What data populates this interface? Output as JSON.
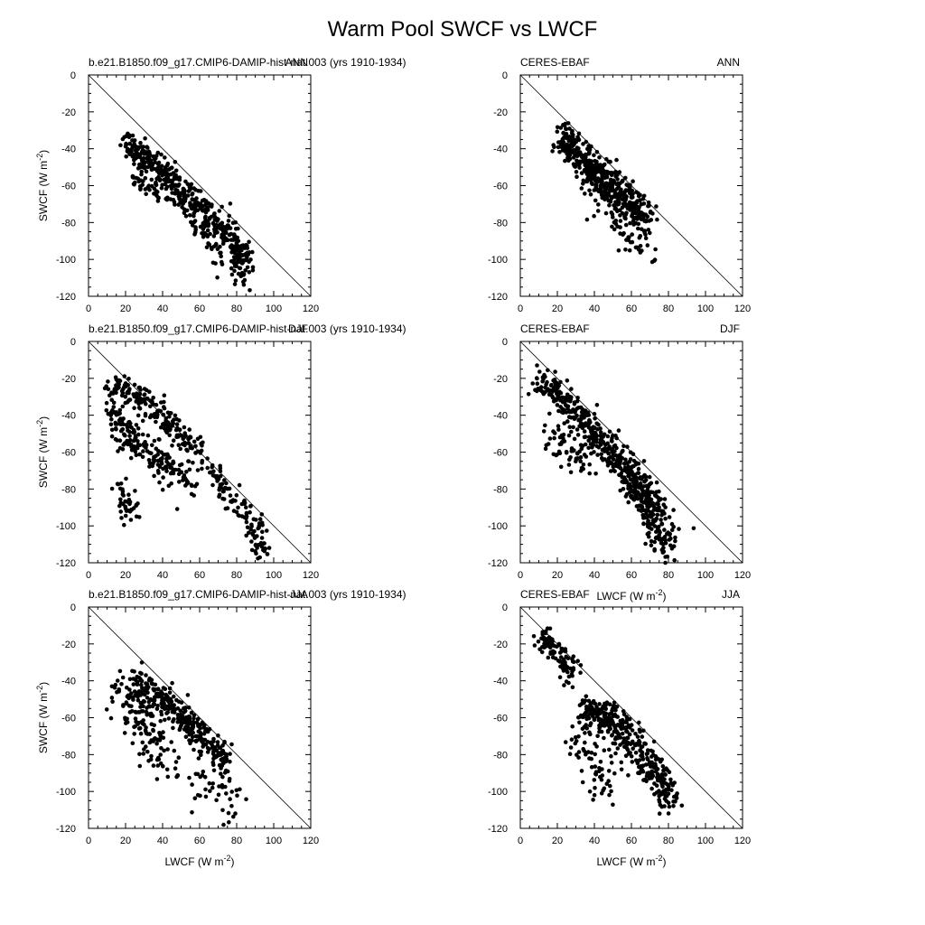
{
  "figure": {
    "title": "Warm Pool SWCF vs LWCF"
  },
  "chart_data": [
    {
      "type": "scatter",
      "left_label": "b.e21.B1850.f09_g17.CMIP6-DAMIP-hist-nat.003 (yrs 1910-1934)",
      "right_label": "ANN",
      "xlabel": "",
      "ylabel": "SWCF (W m-2)",
      "xlim": [
        0,
        120
      ],
      "ylim": [
        -120,
        0
      ],
      "xticks": [
        0,
        20,
        40,
        60,
        80,
        100,
        120
      ],
      "yticks": [
        0,
        -20,
        -40,
        -60,
        -80,
        -100,
        -120
      ],
      "reference_line": [
        [
          0,
          0
        ],
        [
          120,
          -120
        ]
      ],
      "clusters": [
        {
          "x": [
            20,
            30,
            40,
            50,
            60,
            70,
            80,
            85
          ],
          "y": [
            -37,
            -45,
            -52,
            -62,
            -72,
            -82,
            -92,
            -100
          ],
          "spread": 4,
          "count": 420,
          "seed": 11
        },
        {
          "x": [
            25,
            35,
            45,
            55,
            65
          ],
          "y": [
            -55,
            -62,
            -68,
            -76,
            -84
          ],
          "spread": 3,
          "count": 60,
          "seed": 12
        },
        {
          "x": [
            60,
            70,
            80,
            85
          ],
          "y": [
            -85,
            -95,
            -105,
            -112
          ],
          "spread": 5,
          "count": 60,
          "seed": 13
        }
      ]
    },
    {
      "type": "scatter",
      "left_label": "CERES-EBAF",
      "right_label": "ANN",
      "xlabel": "",
      "ylabel": "",
      "xlim": [
        0,
        120
      ],
      "ylim": [
        -120,
        0
      ],
      "xticks": [
        0,
        20,
        40,
        60,
        80,
        100,
        120
      ],
      "yticks": [
        0,
        -20,
        -40,
        -60,
        -80,
        -100,
        -120
      ],
      "reference_line": [
        [
          0,
          0
        ],
        [
          120,
          -120
        ]
      ],
      "clusters": [
        {
          "x": [
            22,
            30,
            40,
            50,
            60,
            68
          ],
          "y": [
            -35,
            -42,
            -52,
            -60,
            -70,
            -78
          ],
          "spread": 5,
          "count": 480,
          "seed": 21
        },
        {
          "x": [
            40,
            50,
            60,
            70
          ],
          "y": [
            -62,
            -75,
            -85,
            -95
          ],
          "spread": 6,
          "count": 80,
          "seed": 22
        }
      ]
    },
    {
      "type": "scatter",
      "left_label": "b.e21.B1850.f09_g17.CMIP6-DAMIP-hist-nat.003 (yrs 1910-1934)",
      "right_label": "DJF",
      "xlabel": "",
      "ylabel": "SWCF (W m-2)",
      "xlim": [
        0,
        120
      ],
      "ylim": [
        -120,
        0
      ],
      "xticks": [
        0,
        20,
        40,
        60,
        80,
        100,
        120
      ],
      "yticks": [
        0,
        -20,
        -40,
        -60,
        -80,
        -100,
        -120
      ],
      "reference_line": [
        [
          0,
          0
        ],
        [
          120,
          -120
        ]
      ],
      "clusters": [
        {
          "x": [
            12,
            20,
            30,
            40,
            50,
            60,
            70,
            80,
            90,
            95
          ],
          "y": [
            -25,
            -25,
            -32,
            -40,
            -50,
            -62,
            -75,
            -88,
            -100,
            -115
          ],
          "spread": 4,
          "count": 300,
          "seed": 31
        },
        {
          "x": [
            12,
            18,
            25,
            35,
            45,
            55
          ],
          "y": [
            -35,
            -45,
            -55,
            -63,
            -70,
            -78
          ],
          "spread": 5,
          "count": 200,
          "seed": 32
        },
        {
          "x": [
            15,
            20,
            25
          ],
          "y": [
            -78,
            -88,
            -95
          ],
          "spread": 4,
          "count": 40,
          "seed": 33
        }
      ]
    },
    {
      "type": "scatter",
      "left_label": "CERES-EBAF",
      "right_label": "DJF",
      "xlabel": "LWCF (W m-2)",
      "ylabel": "",
      "xlim": [
        0,
        120
      ],
      "ylim": [
        -120,
        0
      ],
      "xticks": [
        0,
        20,
        40,
        60,
        80,
        100,
        120
      ],
      "yticks": [
        0,
        -20,
        -40,
        -60,
        -80,
        -100,
        -120
      ],
      "reference_line": [
        [
          0,
          0
        ],
        [
          120,
          -120
        ]
      ],
      "clusters": [
        {
          "x": [
            10,
            20,
            30,
            40,
            50,
            60,
            70
          ],
          "y": [
            -22,
            -28,
            -38,
            -50,
            -62,
            -75,
            -88
          ],
          "spread": 5,
          "count": 380,
          "seed": 41
        },
        {
          "x": [
            60,
            65,
            70,
            75,
            80
          ],
          "y": [
            -70,
            -80,
            -90,
            -100,
            -112
          ],
          "spread": 6,
          "count": 200,
          "seed": 42
        },
        {
          "x": [
            15,
            25,
            35
          ],
          "y": [
            -50,
            -58,
            -66
          ],
          "spread": 6,
          "count": 60,
          "seed": 43
        }
      ]
    },
    {
      "type": "scatter",
      "left_label": "b.e21.B1850.f09_g17.CMIP6-DAMIP-hist-nat.003 (yrs 1910-1934)",
      "right_label": "JJA",
      "xlabel": "LWCF (W m-2)",
      "ylabel": "SWCF (W m-2)",
      "xlim": [
        0,
        120
      ],
      "ylim": [
        -120,
        0
      ],
      "xticks": [
        0,
        20,
        40,
        60,
        80,
        100,
        120
      ],
      "yticks": [
        0,
        -20,
        -40,
        -60,
        -80,
        -100,
        -120
      ],
      "reference_line": [
        [
          0,
          0
        ],
        [
          120,
          -120
        ]
      ],
      "clusters": [
        {
          "x": [
            25,
            35,
            45,
            55,
            65,
            75
          ],
          "y": [
            -40,
            -47,
            -55,
            -65,
            -75,
            -85
          ],
          "spread": 4,
          "count": 300,
          "seed": 51
        },
        {
          "x": [
            18,
            25,
            35,
            45
          ],
          "y": [
            -45,
            -55,
            -70,
            -85
          ],
          "spread": 7,
          "count": 140,
          "seed": 52
        },
        {
          "x": [
            55,
            65,
            75,
            80
          ],
          "y": [
            -90,
            -100,
            -105,
            -100
          ],
          "spread": 6,
          "count": 40,
          "seed": 53
        }
      ]
    },
    {
      "type": "scatter",
      "left_label": "CERES-EBAF",
      "right_label": "JJA",
      "xlabel": "LWCF (W m-2)",
      "ylabel": "",
      "xlim": [
        0,
        120
      ],
      "ylim": [
        -120,
        0
      ],
      "xticks": [
        0,
        20,
        40,
        60,
        80,
        100,
        120
      ],
      "yticks": [
        0,
        -20,
        -40,
        -60,
        -80,
        -100,
        -120
      ],
      "reference_line": [
        [
          0,
          0
        ],
        [
          120,
          -120
        ]
      ],
      "clusters": [
        {
          "x": [
            10,
            20,
            30
          ],
          "y": [
            -15,
            -25,
            -38
          ],
          "spread": 4,
          "count": 100,
          "seed": 61
        },
        {
          "x": [
            35,
            45,
            55,
            65,
            75,
            82
          ],
          "y": [
            -55,
            -60,
            -68,
            -80,
            -92,
            -105
          ],
          "spread": 5,
          "count": 380,
          "seed": 62
        },
        {
          "x": [
            30,
            40,
            50
          ],
          "y": [
            -70,
            -85,
            -100
          ],
          "spread": 6,
          "count": 60,
          "seed": 63
        }
      ]
    }
  ]
}
